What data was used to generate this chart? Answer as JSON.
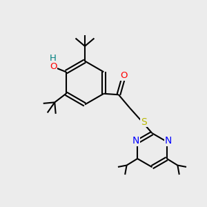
{
  "bg_color": "#ececec",
  "bond_color": "#000000",
  "line_width": 1.5,
  "atom_colors": {
    "O": "#ff0000",
    "N": "#0000ff",
    "S": "#b8b800",
    "H": "#008080",
    "C": "#000000"
  },
  "font_size": 9.5,
  "fig_width": 3.0,
  "fig_height": 3.0
}
